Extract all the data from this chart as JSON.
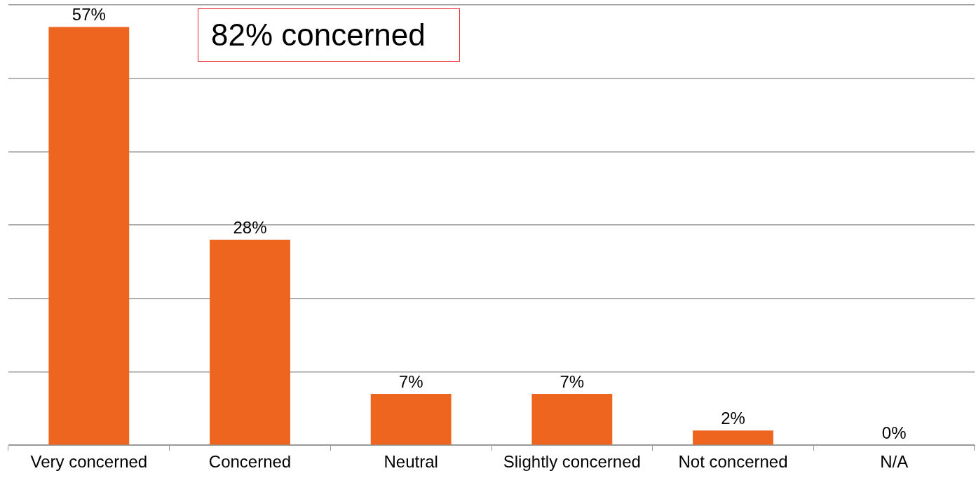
{
  "chart_data": {
    "type": "bar",
    "categories": [
      "Very concerned",
      "Concerned",
      "Neutral",
      "Slightly concerned",
      "Not concerned",
      "N/A"
    ],
    "values": [
      57,
      28,
      7,
      7,
      2,
      0
    ],
    "value_labels": [
      "57%",
      "28%",
      "7%",
      "7%",
      "2%",
      "0%"
    ],
    "color": "#ee6520",
    "ylim": [
      0,
      60
    ],
    "yticks": [
      {
        "value": 0,
        "label": null
      },
      {
        "value": 10,
        "label": null
      },
      {
        "value": 20,
        "label": null
      },
      {
        "value": 30,
        "label": null
      },
      {
        "value": 40,
        "label": null
      },
      {
        "value": 50,
        "label": null
      },
      {
        "value": 60,
        "label": null
      }
    ],
    "tick_labels": "x",
    "grid": "y",
    "legend": false,
    "annotations": [
      "82% concerned"
    ]
  }
}
